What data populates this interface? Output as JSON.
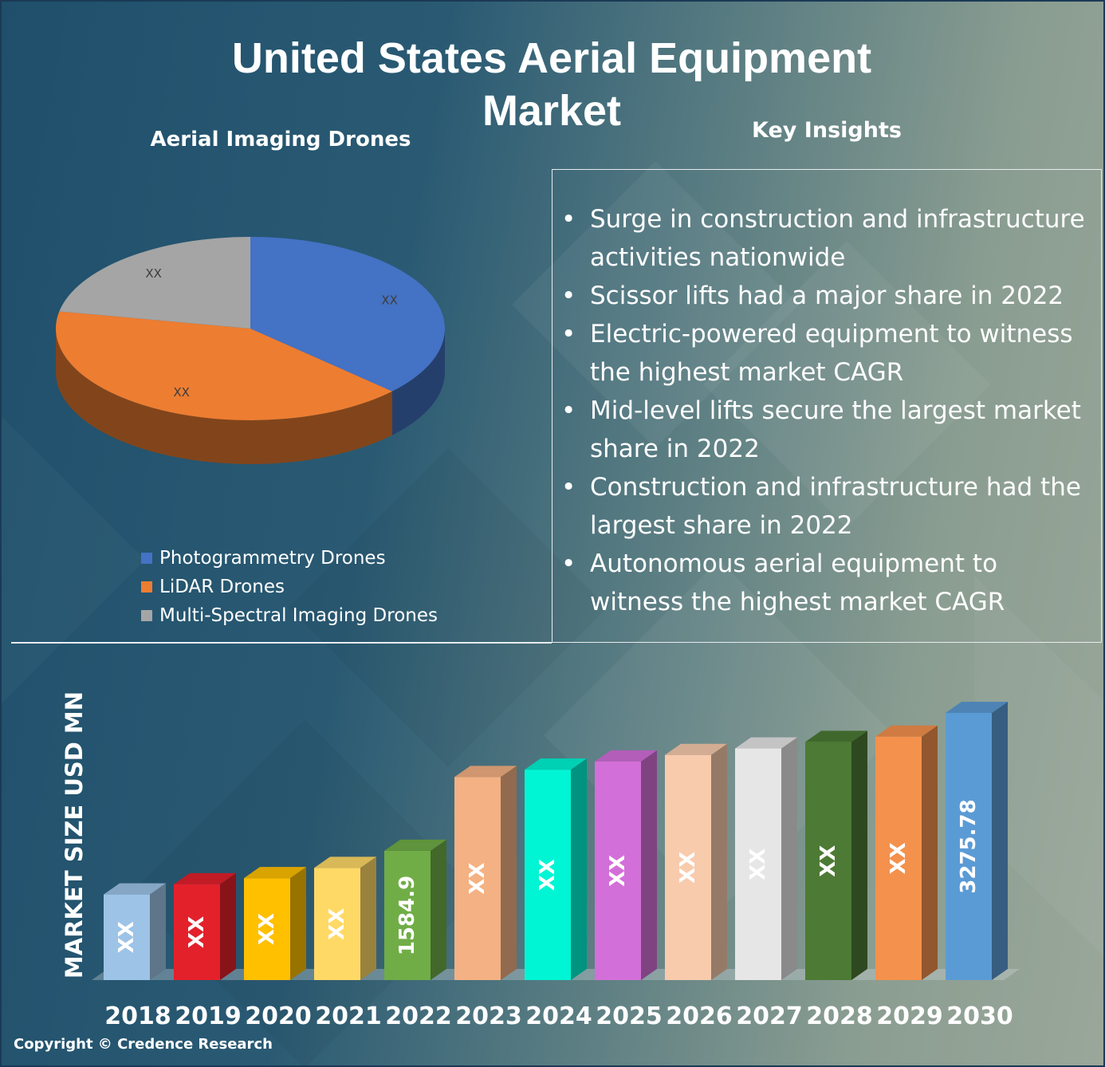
{
  "title": "United States Aerial Equipment Market",
  "pie_title": "Aerial Imaging Drones",
  "insights_title": "Key Insights",
  "insights": [
    "Surge in construction and infrastructure activities nationwide",
    "Scissor lifts had a major share in 2022",
    "Electric-powered equipment to witness the highest market CAGR",
    "Mid-level lifts secure the largest market share in 2022",
    "Construction and infrastructure had the largest share in 2022",
    "Autonomous aerial equipment to witness the highest market CAGR"
  ],
  "copyright": "Copyright © Credence Research",
  "chart_data": [
    {
      "type": "pie",
      "title": "Aerial Imaging Drones",
      "categories": [
        "Photogrammetry Drones",
        "LiDAR Drones",
        "Multi-Spectral Imaging Drones"
      ],
      "values": [
        37,
        41,
        22
      ],
      "data_labels": [
        "XX",
        "XX",
        "XX"
      ],
      "colors": [
        "#4472c4",
        "#ed7d31",
        "#a5a5a5"
      ],
      "legend": "bottom-left"
    },
    {
      "type": "bar",
      "ylabel": "MARKET SIZE USD MN",
      "categories": [
        "2018",
        "2019",
        "2020",
        "2021",
        "2022",
        "2023",
        "2024",
        "2025",
        "2026",
        "2027",
        "2028",
        "2029",
        "2030"
      ],
      "values": [
        1050,
        1175,
        1250,
        1375,
        1584.9,
        2490,
        2580,
        2680,
        2760,
        2840,
        2920,
        2985,
        3275.78
      ],
      "data_labels": [
        "XX",
        "XX",
        "XX",
        "XX",
        "1584.9",
        "XX",
        "XX",
        "XX",
        "XX",
        "XX",
        "XX",
        "XX",
        "3275.78"
      ],
      "colors": [
        "#9dc3e6",
        "#e3212b",
        "#ffc000",
        "#ffd966",
        "#70ad47",
        "#f4b183",
        "#00f5d4",
        "#d36fd8",
        "#f8cbad",
        "#e7e6e6",
        "#4d7a34",
        "#f4914d",
        "#5b9bd5"
      ],
      "ylim": [
        0,
        3275.78
      ],
      "grid": false
    }
  ]
}
